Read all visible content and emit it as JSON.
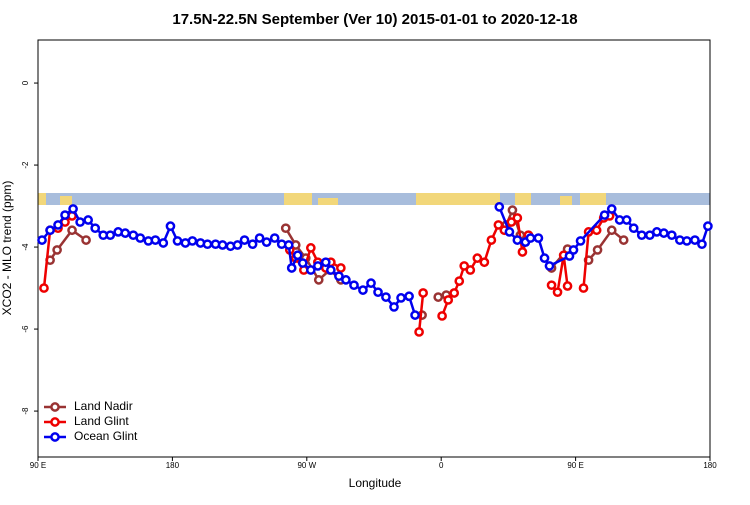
{
  "chart_data": {
    "type": "line",
    "title": "17.5N-22.5N September (Ver 10)   2015-01-01 to 2020-12-18",
    "xlabel": "Longitude",
    "ylabel": "XCO2 - MLO trend (ppm)",
    "xlim": [
      90,
      540
    ],
    "ylim": [
      -9.12,
      1.05
    ],
    "xticks": [
      {
        "value": 90,
        "label": "90 E"
      },
      180,
      {
        "value": 270,
        "label": "90 W"
      },
      {
        "value": 360,
        "label": "0"
      },
      {
        "value": 450,
        "label": "90 E"
      },
      {
        "value": 540,
        "label": "180"
      }
    ],
    "yticks": [
      0,
      -2,
      -4,
      -6,
      -8
    ],
    "legend": "bottom-left",
    "series": [
      {
        "name": "Land Nadir",
        "color": "#993333",
        "x": [
          98.1,
          102.8,
          112.8,
          122.2,
          null,
          255.9,
          262.6,
          269.3,
          278.0,
          285.4,
          292.8,
          null,
          347.2,
          null,
          358.0,
          363.4,
          null,
          403.6,
          407.7,
          413.0,
          418.4,
          null,
          433.9,
          444.6,
          null,
          458.7,
          464.7,
          474.2,
          482.2
        ],
        "values": [
          -4.32,
          -4.07,
          -3.59,
          -3.83,
          null,
          -3.54,
          -3.95,
          -4.27,
          -4.8,
          -4.56,
          -4.8,
          null,
          -5.66,
          null,
          -5.22,
          -5.17,
          null,
          -3.46,
          -3.1,
          -3.71,
          -3.71,
          null,
          -4.51,
          -4.05,
          null,
          -4.32,
          -4.07,
          -3.59,
          -3.83
        ]
      },
      {
        "name": "Land Glint",
        "color": "#ee0000",
        "x": [
          94.0,
          98.1,
          103.4,
          108.1,
          112.8,
          null,
          258.6,
          262.6,
          268.0,
          272.7,
          277.4,
          282.7,
          286.1,
          292.8,
          null,
          345.2,
          347.9,
          null,
          360.6,
          364.7,
          368.7,
          372.1,
          375.4,
          379.5,
          384.2,
          388.9,
          393.6,
          398.3,
          402.3,
          407.0,
          411.0,
          414.4,
          418.4,
          null,
          433.9,
          437.9,
          442.0,
          444.6,
          null,
          455.3,
          458.7,
          464.1,
          468.8,
          472.8
        ],
        "values": [
          -5.0,
          -3.59,
          -3.54,
          -3.39,
          -3.24,
          null,
          -4.07,
          -4.27,
          -4.56,
          -4.02,
          -4.37,
          -4.51,
          -4.37,
          -4.51,
          null,
          -6.07,
          -5.12,
          null,
          -5.68,
          -5.29,
          -5.12,
          -4.83,
          -4.46,
          -4.56,
          -4.27,
          -4.37,
          -3.83,
          -3.46,
          -3.59,
          -3.39,
          -3.29,
          -4.12,
          -3.71,
          null,
          -4.93,
          -5.1,
          -4.2,
          -4.95,
          null,
          -5.0,
          -3.63,
          -3.59,
          -3.29,
          -3.24
        ]
      },
      {
        "name": "Ocean Glint",
        "color": "#0000ee",
        "x": [
          92.7,
          98.1,
          103.4,
          108.1,
          113.5,
          118.2,
          123.6,
          128.3,
          133.7,
          138.4,
          143.7,
          148.4,
          153.8,
          158.5,
          163.9,
          168.6,
          173.9,
          178.7,
          183.4,
          188.7,
          193.4,
          198.8,
          203.5,
          208.9,
          213.6,
          218.9,
          223.6,
          228.3,
          233.7,
          238.4,
          243.1,
          248.5,
          253.2,
          257.9,
          259.9,
          263.9,
          267.3,
          272.7,
          277.4,
          282.7,
          286.1,
          291.5,
          296.2,
          301.6,
          307.6,
          313.0,
          317.7,
          323.0,
          328.4,
          333.1,
          338.5,
          342.5,
          null,
          398.9,
          405.7,
          411.0,
          416.4,
          419.8,
          425.1,
          429.2,
          432.5,
          445.9,
          448.6,
          453.3,
          469.4,
          474.2,
          479.5,
          484.2,
          488.9,
          494.3,
          499.7,
          504.4,
          509.1,
          514.4,
          519.8,
          524.5,
          529.9,
          534.6,
          538.6
        ],
        "values": [
          -3.83,
          -3.59,
          -3.46,
          -3.22,
          -3.07,
          -3.39,
          -3.34,
          -3.54,
          -3.71,
          -3.71,
          -3.63,
          -3.66,
          -3.71,
          -3.78,
          -3.85,
          -3.83,
          -3.9,
          -3.49,
          -3.85,
          -3.9,
          -3.85,
          -3.9,
          -3.93,
          -3.93,
          -3.95,
          -3.98,
          -3.95,
          -3.83,
          -3.93,
          -3.78,
          -3.88,
          -3.78,
          -3.93,
          -3.95,
          -4.51,
          -4.2,
          -4.39,
          -4.56,
          -4.46,
          -4.37,
          -4.56,
          -4.71,
          -4.8,
          -4.93,
          -5.05,
          -4.88,
          -5.1,
          -5.22,
          -5.46,
          -5.24,
          -5.2,
          -5.66,
          null,
          -3.02,
          -3.63,
          -3.83,
          -3.88,
          -3.78,
          -3.78,
          -4.27,
          -4.46,
          -4.22,
          -4.07,
          -3.85,
          -3.22,
          -3.07,
          -3.34,
          -3.34,
          -3.54,
          -3.71,
          -3.71,
          -3.63,
          -3.66,
          -3.71,
          -3.83,
          -3.85,
          -3.83,
          -3.93,
          -3.49
        ]
      }
    ]
  }
}
